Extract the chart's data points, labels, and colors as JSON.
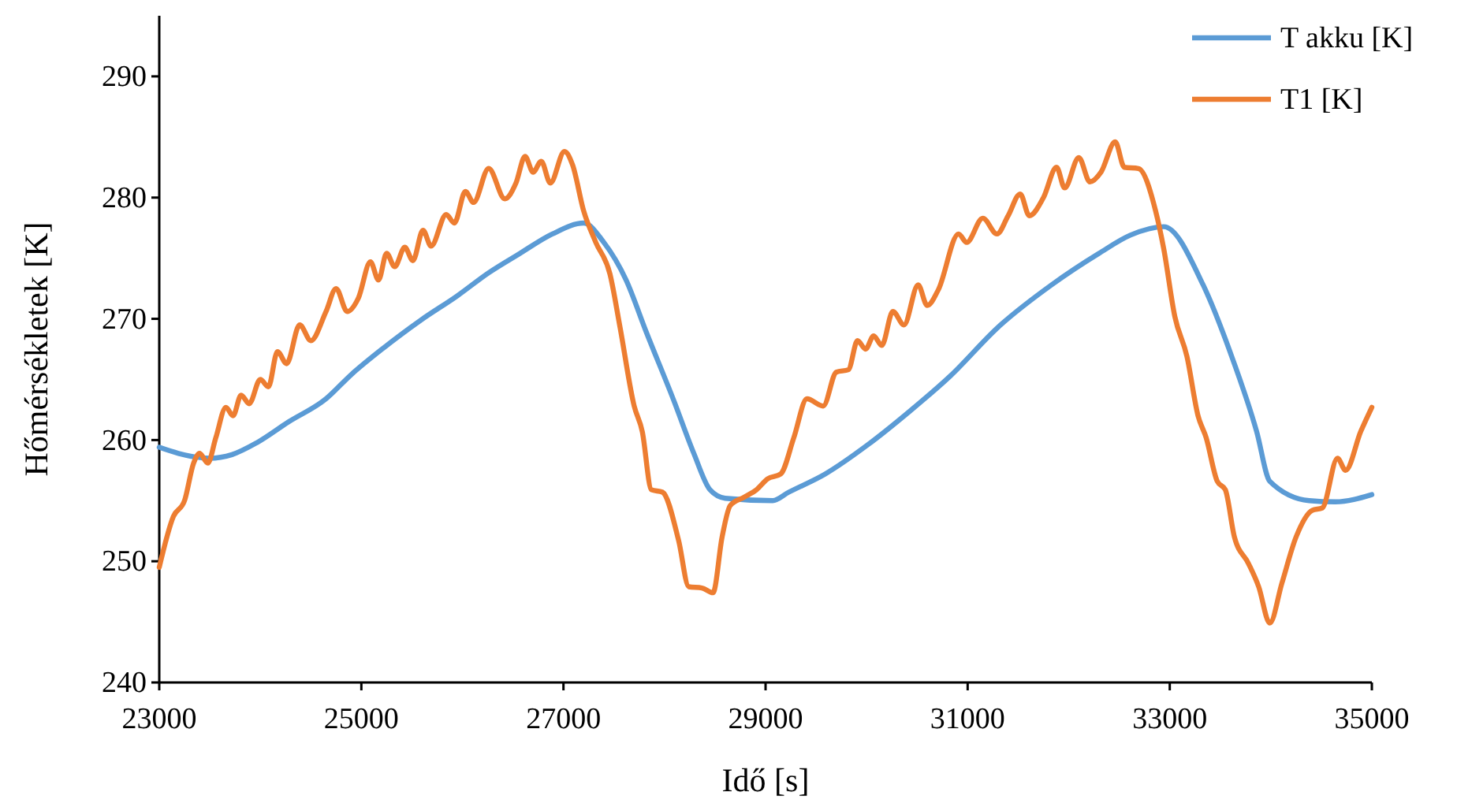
{
  "chart_data": {
    "type": "line",
    "xlabel": "Idő [s]",
    "ylabel": "Hőmérsékletek [K]",
    "xlim": [
      23000,
      35000
    ],
    "xticks": [
      23000,
      25000,
      27000,
      29000,
      31000,
      33000,
      35000
    ],
    "ylim": [
      240,
      295
    ],
    "yticks": [
      240,
      250,
      260,
      270,
      280,
      290
    ],
    "grid": false,
    "legend": "top right",
    "marker": "none",
    "line_style": "solid",
    "series": [
      {
        "name": "T akku [K]",
        "color": "#5b9bd5",
        "x": [
          23000,
          23190,
          23500,
          23720,
          23970,
          24280,
          24650,
          24900,
          25220,
          25590,
          25950,
          26260,
          26570,
          26890,
          27200,
          27400,
          27620,
          27820,
          28090,
          28290,
          28450,
          28600,
          29070,
          29230,
          29590,
          30010,
          30430,
          30830,
          31300,
          31830,
          32300,
          32610,
          32940,
          33330,
          33600,
          33860,
          33990,
          34380,
          34640,
          35000
        ],
        "values": [
          259.4,
          258.9,
          258.5,
          258.8,
          259.8,
          261.5,
          263.4,
          265.4,
          267.6,
          269.9,
          271.9,
          273.8,
          275.4,
          277,
          277.9,
          276.3,
          273.2,
          268.9,
          263.3,
          258.9,
          255.9,
          255.2,
          255,
          255.7,
          257.2,
          259.6,
          262.4,
          265.3,
          269.3,
          272.8,
          275.4,
          276.9,
          277.6,
          272.8,
          267.2,
          260.7,
          256.6,
          255,
          254.9,
          255.5
        ]
      },
      {
        "name": "T1 [K]",
        "color": "#ed7d31",
        "x": [
          23000,
          23140,
          23250,
          23340,
          23400,
          23480,
          23560,
          23660,
          23730,
          23810,
          23890,
          24000,
          24080,
          24170,
          24260,
          24390,
          24500,
          24650,
          24750,
          24860,
          24970,
          25090,
          25170,
          25250,
          25330,
          25430,
          25510,
          25610,
          25690,
          25840,
          25920,
          26030,
          26110,
          26260,
          26420,
          26530,
          26620,
          26700,
          26780,
          26870,
          27010,
          27090,
          27200,
          27320,
          27460,
          27560,
          27700,
          27780,
          27870,
          27980,
          28140,
          28240,
          28370,
          28480,
          28570,
          28650,
          28790,
          28910,
          29020,
          29150,
          29280,
          29410,
          29570,
          29700,
          29820,
          29910,
          29990,
          30070,
          30150,
          30260,
          30370,
          30510,
          30600,
          30710,
          30910,
          30990,
          31150,
          31290,
          31400,
          31520,
          31610,
          31750,
          31880,
          31960,
          32100,
          32210,
          32320,
          32460,
          32550,
          32690,
          32860,
          32940,
          33050,
          33170,
          33280,
          33360,
          33470,
          33550,
          33640,
          33780,
          33880,
          33990,
          34110,
          34250,
          34410,
          34510,
          34660,
          34740,
          34890,
          35000
        ],
        "values": [
          249.5,
          253.7,
          255,
          258.1,
          258.9,
          258.1,
          260.2,
          262.7,
          262,
          263.7,
          263,
          265,
          264.4,
          267.3,
          266.3,
          269.5,
          268.2,
          270.6,
          272.5,
          270.6,
          271.7,
          274.7,
          273.2,
          275.4,
          274.3,
          275.9,
          274.8,
          277.3,
          276,
          278.6,
          277.9,
          280.5,
          279.6,
          282.4,
          279.9,
          281.2,
          283.4,
          282.1,
          283,
          281.2,
          283.8,
          282.7,
          278.9,
          276.3,
          273.7,
          269.3,
          262.8,
          260.7,
          255.9,
          255.7,
          251.7,
          247.9,
          247.8,
          247.4,
          252,
          254.6,
          255.3,
          255.9,
          256.8,
          257.2,
          260.2,
          263.4,
          262.8,
          265.6,
          265.8,
          268.2,
          267.5,
          268.6,
          267.8,
          270.6,
          269.5,
          272.8,
          271.1,
          272.4,
          277,
          276.3,
          278.3,
          277,
          278.5,
          280.3,
          278.5,
          280,
          282.5,
          280.8,
          283.3,
          281.3,
          282.1,
          284.6,
          282.5,
          282.4,
          278.9,
          275.8,
          270.2,
          266.9,
          262,
          260.2,
          256.6,
          255.9,
          252,
          249.8,
          247.9,
          244.9,
          248.2,
          252,
          254.2,
          254.4,
          258.5,
          257.5,
          260.7,
          262.7
        ]
      }
    ]
  }
}
